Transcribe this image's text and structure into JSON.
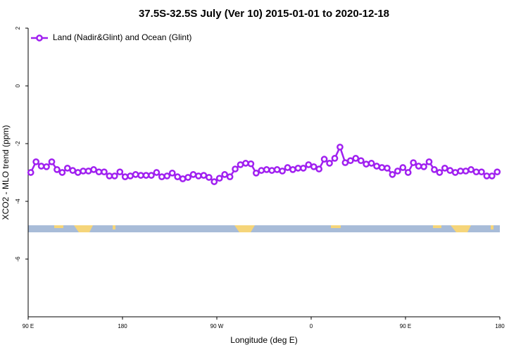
{
  "chart_data": {
    "type": "line",
    "title": "37.5S-32.5S July (Ver 10)   2015-01-01 to 2020-12-18",
    "x_label": "Longitude (deg E)",
    "y_label": "XCO2 - MLO trend (ppm)",
    "xlim": [
      90,
      540
    ],
    "ylim": [
      -8,
      2
    ],
    "xticks": [
      {
        "value": 90,
        "label": "90 E"
      },
      180,
      {
        "value": 270,
        "label": "90 W"
      },
      {
        "value": 360,
        "label": "0"
      },
      {
        "value": 450,
        "label": "90 E"
      },
      180
    ],
    "yticks": [
      2,
      0,
      -2,
      -4,
      -6
    ],
    "legend": "top-left",
    "series": [
      {
        "name": "Land (Nadir&Glint) and Ocean (Glint)",
        "color": "#a020f0",
        "values": [
          -3.0,
          -2.63,
          -2.78,
          -2.8,
          -2.63,
          -2.9,
          -3.0,
          -2.85,
          -2.93,
          -3.0,
          -2.95,
          -2.95,
          -2.9,
          -2.98,
          -2.98,
          -3.12,
          -3.12,
          -2.98,
          -3.15,
          -3.12,
          -3.07,
          -3.1,
          -3.1,
          -3.1,
          -3.0,
          -3.15,
          -3.12,
          -3.02,
          -3.15,
          -3.22,
          -3.17,
          -3.07,
          -3.12,
          -3.1,
          -3.17,
          -3.32,
          -3.2,
          -3.07,
          -3.15,
          -2.88,
          -2.73,
          -2.68,
          -2.7,
          -3.02,
          -2.93,
          -2.9,
          -2.93,
          -2.9,
          -2.95,
          -2.83,
          -2.9,
          -2.85,
          -2.85,
          -2.73,
          -2.8,
          -2.88,
          -2.54,
          -2.68,
          -2.51,
          -2.12,
          -2.66,
          -2.59,
          -2.51,
          -2.59,
          -2.71,
          -2.68,
          -2.78,
          -2.83,
          -2.85,
          -3.07,
          -2.95,
          -2.83,
          -3.0,
          -2.66,
          -2.78,
          -2.8,
          -2.63,
          -2.9,
          -3.0,
          -2.85,
          -2.93,
          -3.0,
          -2.95,
          -2.95,
          -2.9,
          -2.98,
          -2.98,
          -3.12,
          -3.12,
          -2.98
        ]
      }
    ]
  }
}
